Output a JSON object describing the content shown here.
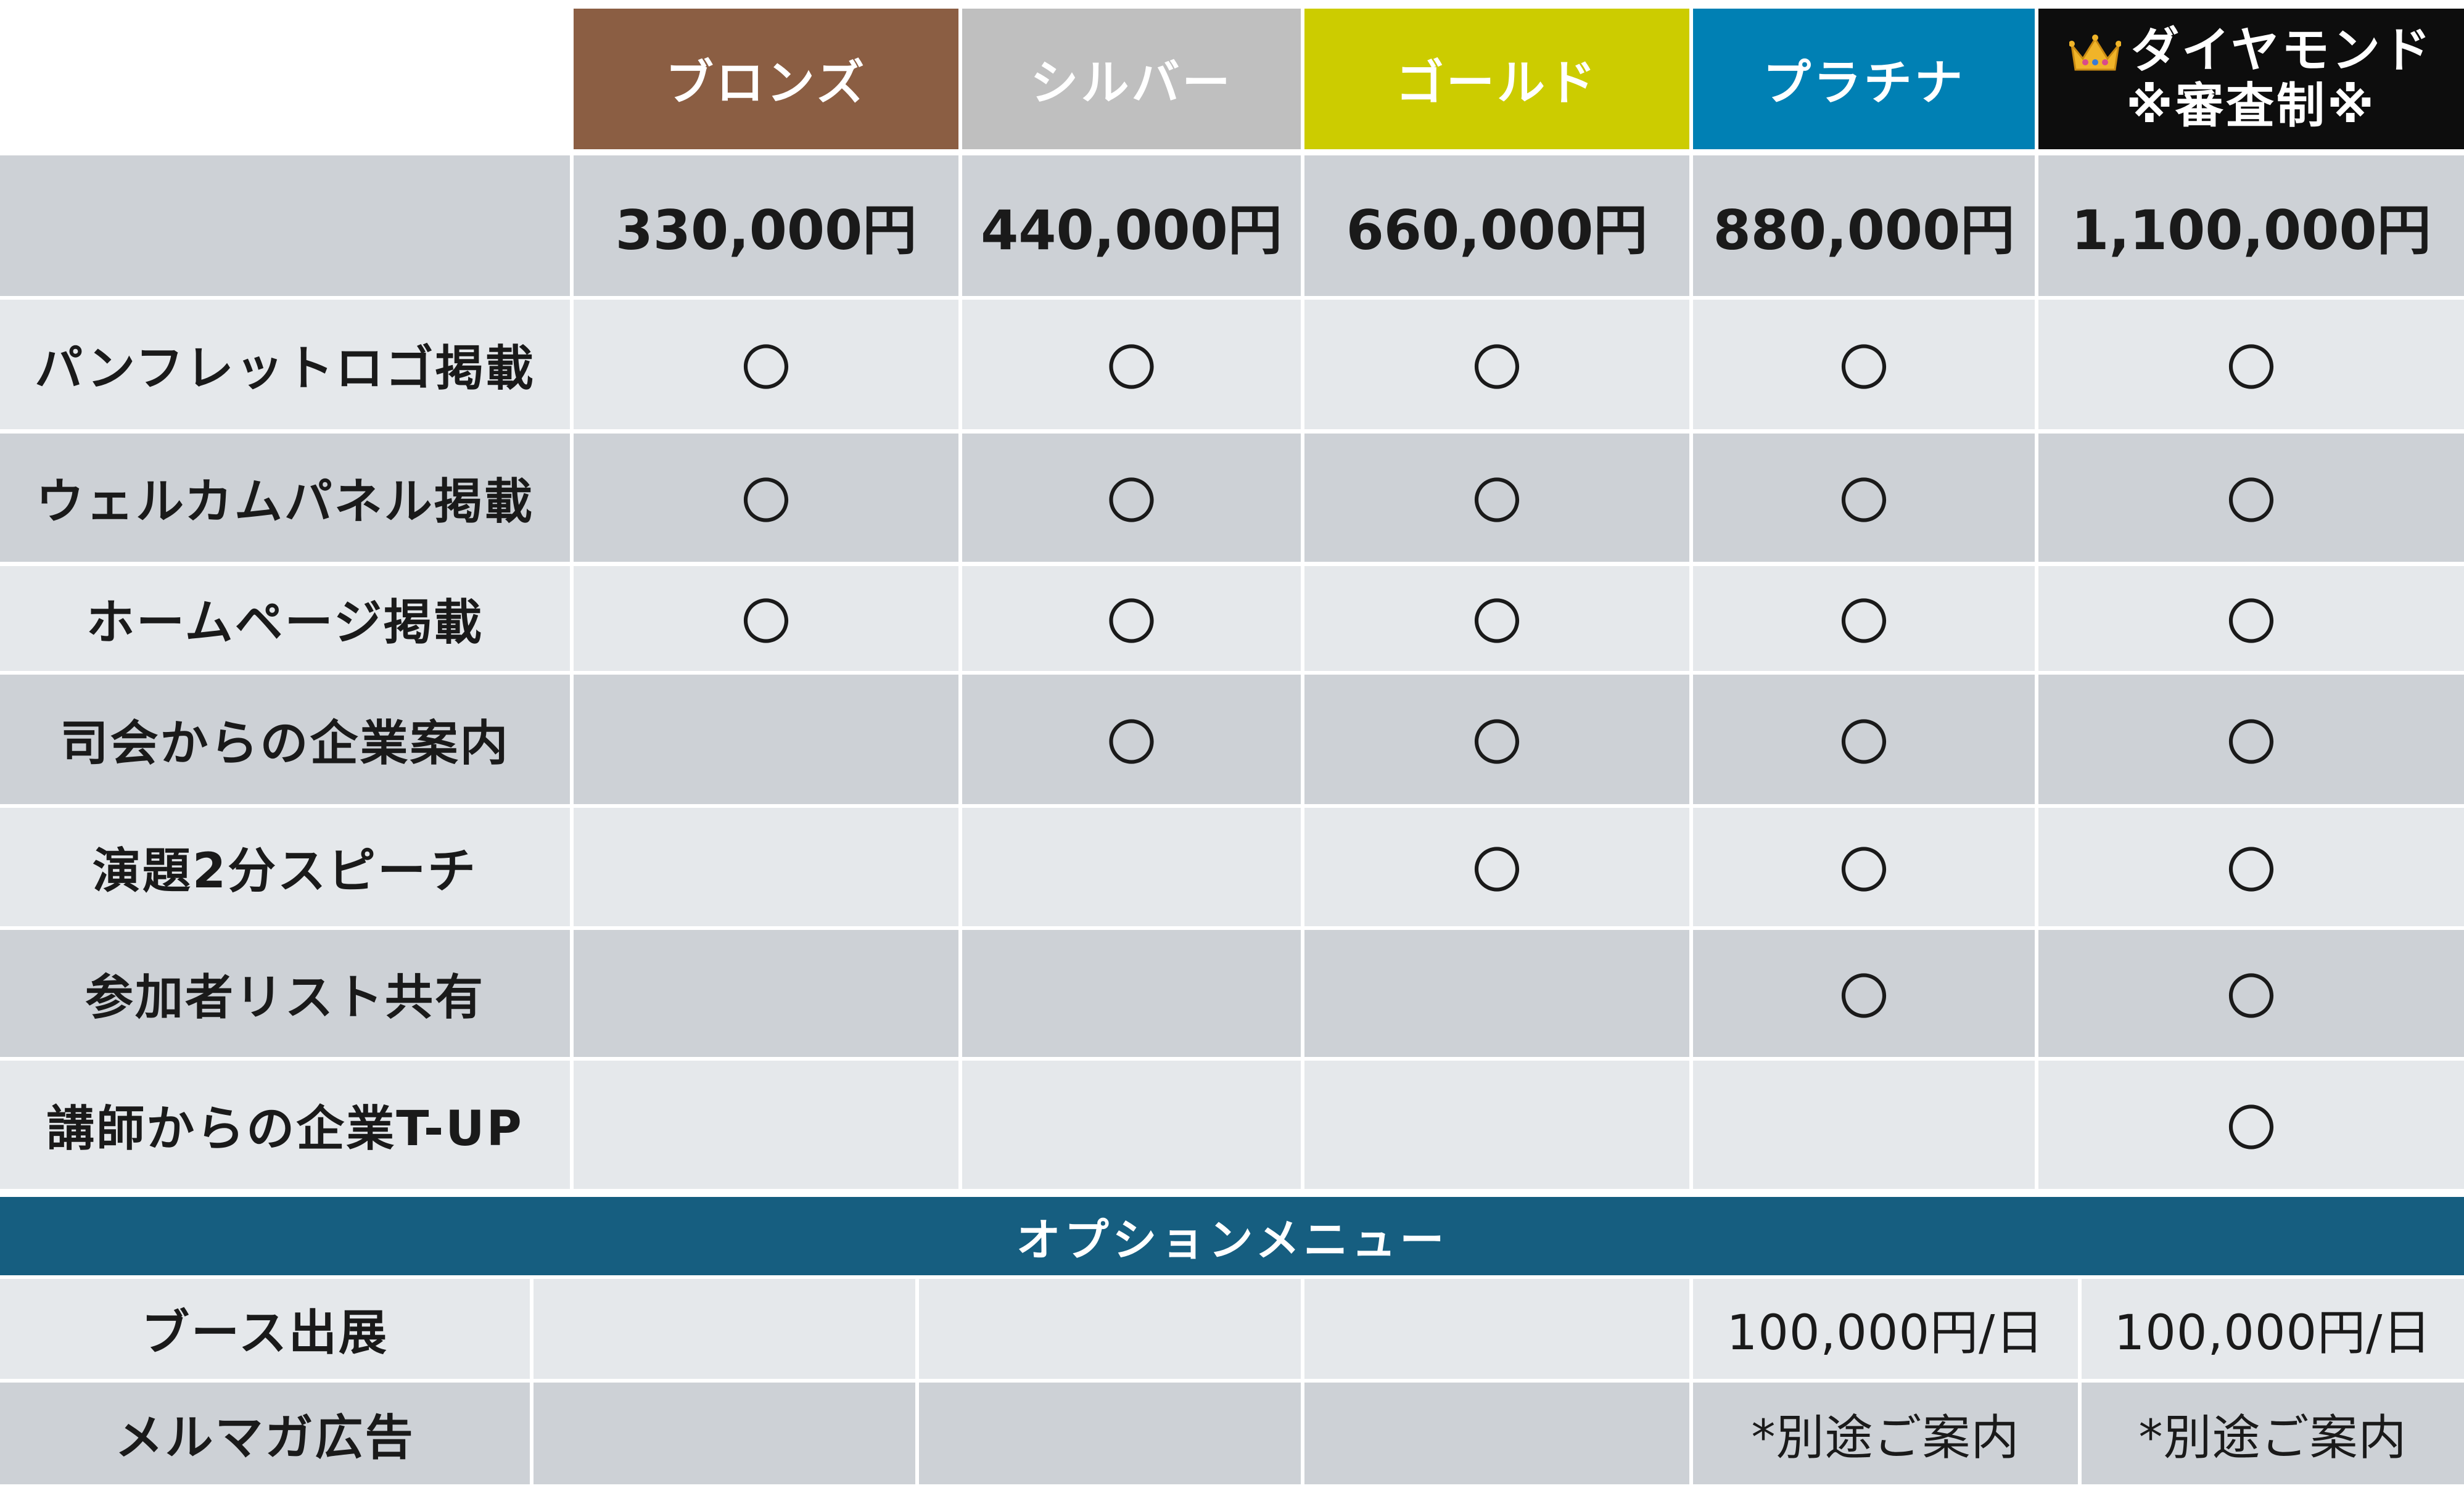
{
  "tiers": [
    {
      "name": "ブロンズ",
      "color": "#8b5e43"
    },
    {
      "name": "シルバー",
      "color": "#bfbfbf"
    },
    {
      "name": "ゴールド",
      "color": "#cccc00"
    },
    {
      "name": "プラチナ",
      "color": "#0080b4"
    },
    {
      "name": "ダイヤモンド",
      "sub": "※審査制※",
      "color": "#0d0d0d",
      "icon": "crown-icon"
    }
  ],
  "prices": [
    "330,000円",
    "440,000円",
    "660,000円",
    "880,000円",
    "1,100,000円"
  ],
  "features": [
    {
      "label": "パンフレットロゴ掲載",
      "marks": [
        "〇",
        "〇",
        "〇",
        "〇",
        "〇"
      ]
    },
    {
      "label": "ウェルカムパネル掲載",
      "marks": [
        "〇",
        "〇",
        "〇",
        "〇",
        "〇"
      ]
    },
    {
      "label": "ホームページ掲載",
      "marks": [
        "〇",
        "〇",
        "〇",
        "〇",
        "〇"
      ]
    },
    {
      "label": "司会からの企業案内",
      "marks": [
        "",
        "〇",
        "〇",
        "〇",
        "〇"
      ]
    },
    {
      "label": "演題2分スピーチ",
      "marks": [
        "",
        "",
        "〇",
        "〇",
        "〇"
      ]
    },
    {
      "label": "参加者リスト共有",
      "marks": [
        "",
        "",
        "",
        "〇",
        "〇"
      ]
    },
    {
      "label": "講師からの企業T-UP",
      "marks": [
        "",
        "",
        "",
        "",
        "〇"
      ]
    }
  ],
  "option_header": "オプションメニュー",
  "options": [
    {
      "label": "ブース出展",
      "values": [
        "",
        "",
        "",
        "100,000円/日",
        "100,000円/日"
      ]
    },
    {
      "label": "メルマガ広告",
      "values": [
        "",
        "",
        "",
        "*別途ご案内",
        "*別途ご案内"
      ]
    }
  ],
  "colors": {
    "row_light": "#e5e8eb",
    "row_dark": "#cdd1d6",
    "band": "#165e80"
  }
}
